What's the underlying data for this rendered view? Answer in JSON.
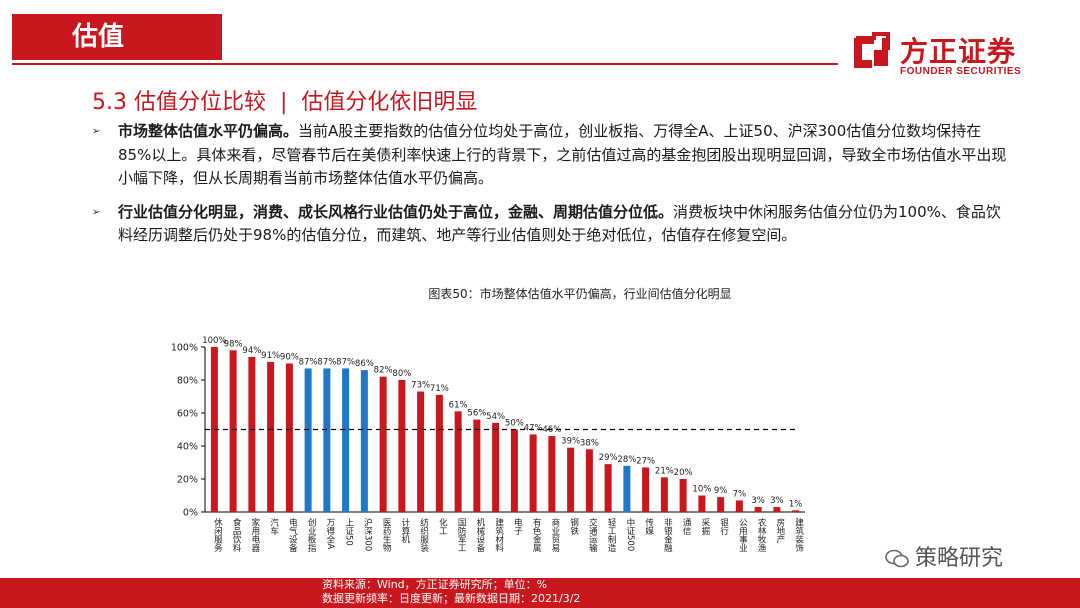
{
  "header": {
    "section_title": "估值",
    "logo_cn": "方正证券",
    "logo_en": "FOUNDER SECURITIES"
  },
  "subtitle": {
    "left": "5.3 估值分位比较",
    "sep": "|",
    "right": "估值分化依旧明显"
  },
  "bullets": [
    {
      "bold": "市场整体估值水平仍偏高。",
      "text": "当前A股主要指数的估值分位均处于高位，创业板指、万得全A、上证50、沪深300估值分位数均保持在85%以上。具体来看，尽管春节后在美债利率快速上行的背景下，之前估值过高的基金抱团股出现明显回调，导致全市场估值水平出现小幅下降，但从长周期看当前市场整体估值水平仍偏高。"
    },
    {
      "bold": "行业估值分化明显，消费、成长风格行业估值仍处于高位，金融、周期估值分位低。",
      "text": "消费板块中休闲服务估值分位仍为100%、食品饮料经历调整后仍处于98%的估值分位，而建筑、地产等行业估值则处于绝对低位，估值存在修复空间。"
    }
  ],
  "figure_title": "图表50：市场整体估值水平仍偏高，行业间估值分化明显",
  "chart_data": {
    "type": "bar",
    "categories": [
      "休闲服务",
      "食品饮料",
      "家用电器",
      "汽车",
      "电气设备",
      "创业板指",
      "万得全A",
      "上证50",
      "沪深300",
      "医药生物",
      "计算机",
      "纺织服装",
      "化工",
      "国防军工",
      "机械设备",
      "建筑材料",
      "电子",
      "有色金属",
      "商业贸易",
      "钢铁",
      "交通运输",
      "轻工制造",
      "中证500",
      "传媒",
      "非银金融",
      "通信",
      "采掘",
      "银行",
      "公用事业",
      "农林牧渔",
      "房地产",
      "建筑装饰"
    ],
    "values": [
      100,
      98,
      94,
      91,
      90,
      87,
      87,
      87,
      86,
      82,
      80,
      73,
      71,
      61,
      56,
      54,
      50,
      47,
      46,
      39,
      38,
      29,
      28,
      27,
      21,
      20,
      10,
      9,
      7,
      3,
      3,
      1
    ],
    "value_labels": [
      "100%",
      "98%",
      "94%",
      "91%",
      "90%",
      "87%",
      "87%",
      "87%",
      "86%",
      "82%",
      "80%",
      "73%",
      "71%",
      "61%",
      "56%",
      "54%",
      "50%",
      "47%",
      "46%",
      "39%",
      "38%",
      "29%",
      "28%",
      "27%",
      "21%",
      "20%",
      "10%",
      "9%",
      "7%",
      "3%",
      "3%",
      "1%"
    ],
    "highlight_categories": [
      "创业板指",
      "万得全A",
      "上证50",
      "沪深300",
      "中证500"
    ],
    "colors": {
      "industry": "#c9171e",
      "index": "#1f77c8"
    },
    "reference_line": 50,
    "ylim": [
      0,
      100
    ],
    "yticks": [
      "0%",
      "20%",
      "40%",
      "60%",
      "80%",
      "100%"
    ],
    "grid": false,
    "legend": "none"
  },
  "footer": {
    "line1": "资料来源：Wind，方正证券研究所；单位：%",
    "line2": "数据更新频率：日度更新；最新数据日期：2021/3/2"
  },
  "watermark": "策略研究"
}
